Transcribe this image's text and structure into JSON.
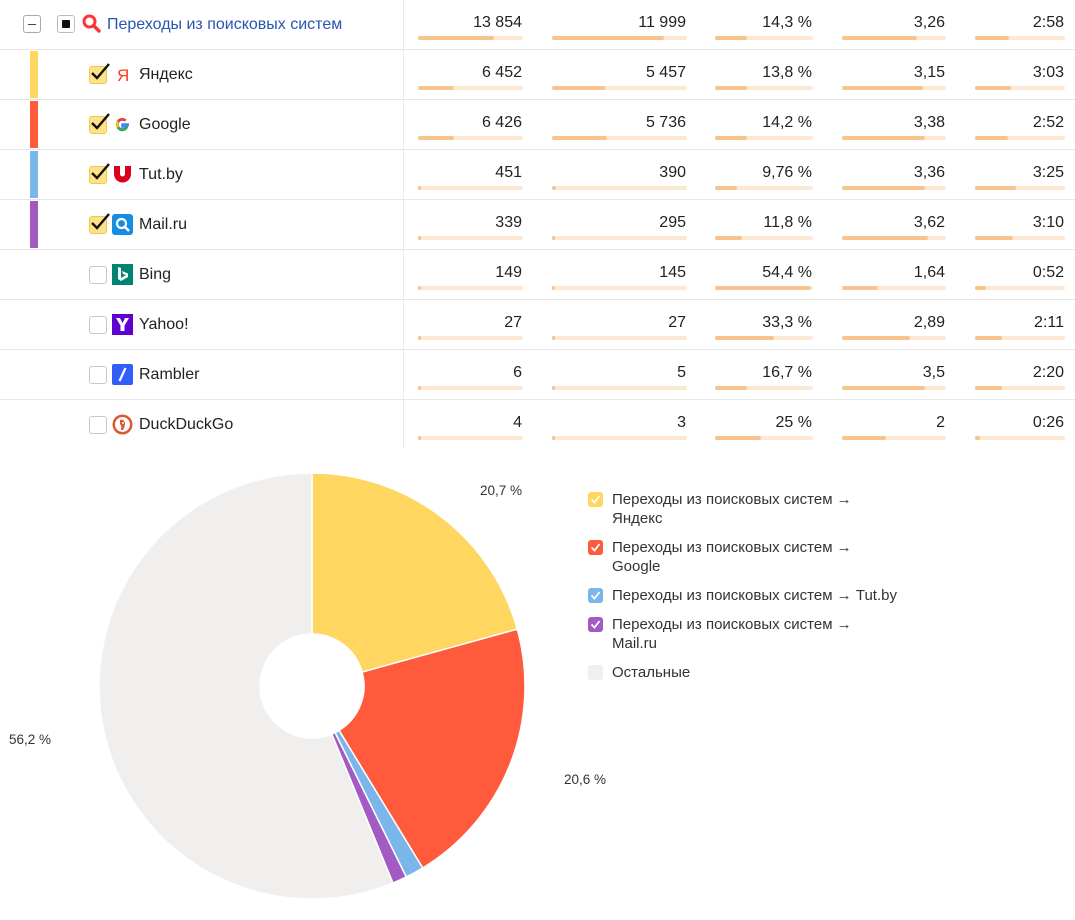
{
  "table": {
    "group": {
      "label": "Переходы из поисковых систем",
      "values": [
        "13 854",
        "11 999",
        "14,3 %",
        "3,26",
        "2:58"
      ],
      "bars": [
        0.72,
        0.83,
        0.33,
        0.72,
        0.38
      ]
    },
    "rows": [
      {
        "label": "Яндекс",
        "icon": "yandex-icon",
        "checked": true,
        "color": "#ffd65f",
        "values": [
          "6 452",
          "5 457",
          "13,8 %",
          "3,15",
          "3:03"
        ],
        "bars": [
          0.34,
          0.39,
          0.33,
          0.78,
          0.4
        ]
      },
      {
        "label": "Google",
        "icon": "google-icon",
        "checked": true,
        "color": "#ff5a3c",
        "values": [
          "6 426",
          "5 736",
          "14,2 %",
          "3,38",
          "2:52"
        ],
        "bars": [
          0.34,
          0.41,
          0.33,
          0.8,
          0.37
        ]
      },
      {
        "label": "Tut.by",
        "icon": "tutby-icon",
        "checked": true,
        "color": "#7ab6ea",
        "values": [
          "451",
          "390",
          "9,76 %",
          "3,36",
          "3:25"
        ],
        "bars": [
          0.02,
          0.03,
          0.22,
          0.8,
          0.45
        ]
      },
      {
        "label": "Mail.ru",
        "icon": "mailru-icon",
        "checked": true,
        "color": "#a35bc4",
        "values": [
          "339",
          "295",
          "11,8 %",
          "3,62",
          "3:10"
        ],
        "bars": [
          0.02,
          0.02,
          0.28,
          0.83,
          0.42
        ]
      },
      {
        "label": "Bing",
        "icon": "bing-icon",
        "checked": false,
        "color": "",
        "values": [
          "149",
          "145",
          "54,4 %",
          "1,64",
          "0:52"
        ],
        "bars": [
          0.01,
          0.01,
          0.98,
          0.35,
          0.12
        ]
      },
      {
        "label": "Yahoo!",
        "icon": "yahoo-icon",
        "checked": false,
        "color": "",
        "values": [
          "27",
          "27",
          "33,3 %",
          "2,89",
          "2:11"
        ],
        "bars": [
          0.0,
          0.0,
          0.6,
          0.65,
          0.3
        ]
      },
      {
        "label": "Rambler",
        "icon": "rambler-icon",
        "checked": false,
        "color": "",
        "values": [
          "6",
          "5",
          "16,7 %",
          "3,5",
          "2:20"
        ],
        "bars": [
          0.0,
          0.0,
          0.33,
          0.8,
          0.3
        ]
      },
      {
        "label": "DuckDuckGo",
        "icon": "duckduckgo-icon",
        "checked": false,
        "color": "",
        "values": [
          "4",
          "3",
          "25 %",
          "2",
          "0:26"
        ],
        "bars": [
          0.0,
          0.0,
          0.47,
          0.42,
          0.06
        ]
      }
    ]
  },
  "chart_data": {
    "type": "pie",
    "donut": true,
    "slices": [
      {
        "name": "Переходы из поисковых систем → Яндекс",
        "value": 20.7,
        "label": "20,7 %",
        "color": "#ffd65f"
      },
      {
        "name": "Переходы из поисковых систем → Google",
        "value": 20.6,
        "label": "20,6 %",
        "color": "#ff5a3c"
      },
      {
        "name": "Переходы из поисковых систем → Tut.by",
        "value": 1.4,
        "label": "",
        "color": "#7ab6ea"
      },
      {
        "name": "Переходы из поисковых систем → Mail.ru",
        "value": 1.1,
        "label": "",
        "color": "#a35bc4"
      },
      {
        "name": "Остальные",
        "value": 56.2,
        "label": "56,2 %",
        "color": "#f0efed"
      }
    ],
    "legend": {
      "placement": "right",
      "entries": [
        {
          "line1": "Переходы из поисковых систем →",
          "line2": "Яндекс",
          "color": "#ffd65f",
          "checked": true
        },
        {
          "line1": "Переходы из поисковых систем →",
          "line2": "Google",
          "color": "#ff5a3c",
          "checked": true
        },
        {
          "line1": "Переходы из поисковых систем → Tut.by",
          "line2": "",
          "color": "#7ab6ea",
          "checked": true
        },
        {
          "line1": "Переходы из поисковых систем →",
          "line2": "Mail.ru",
          "color": "#a35bc4",
          "checked": true
        },
        {
          "line1": "Остальные",
          "line2": "",
          "color": "#f0efed",
          "checked": false
        }
      ]
    }
  },
  "colors": {
    "accent_link": "#2855b0",
    "bar_fill": "#f7c48d",
    "bar_track": "#fde8d3"
  }
}
